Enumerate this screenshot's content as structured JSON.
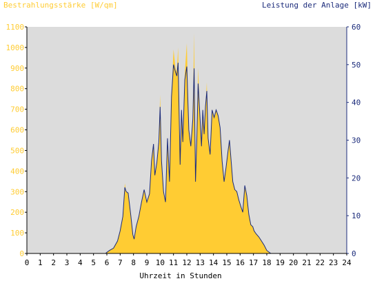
{
  "chart_data": {
    "type": "area",
    "left_axis_title": "Bestrahlungsstärke [W/qm]",
    "right_axis_title": "Leistung der Anlage [kW]",
    "xlabel": "Uhrzeit in Stunden",
    "x_ticks": [
      "0",
      "1",
      "2",
      "3",
      "4",
      "5",
      "6",
      "7",
      "8",
      "9",
      "10",
      "11",
      "12",
      "13",
      "14",
      "15",
      "16",
      "17",
      "18",
      "19",
      "20",
      "21",
      "22",
      "23",
      "24"
    ],
    "y_left_ticks": [
      "0",
      "100",
      "200",
      "300",
      "400",
      "500",
      "600",
      "700",
      "800",
      "900",
      "1000",
      "1100"
    ],
    "y_right_ticks": [
      "0",
      "10",
      "20",
      "30",
      "40",
      "50",
      "60"
    ],
    "xlim": [
      0,
      24
    ],
    "ylim_left": [
      0,
      1100
    ],
    "ylim_right": [
      0,
      60
    ],
    "grid": false,
    "colors": {
      "plot_background": "#dcdcdc",
      "irradiance_fill": "#ffcc33",
      "irradiance_text": "#ffcc33",
      "power_line": "#1a2a7a",
      "power_text": "#1a2a7a",
      "axis_text": "#000000"
    },
    "series": [
      {
        "name": "Bestrahlungsstärke [W/qm]",
        "axis": "left",
        "x": [
          0,
          5.9,
          6.0,
          6.2,
          6.5,
          6.8,
          7.0,
          7.2,
          7.35,
          7.45,
          7.6,
          7.8,
          7.95,
          8.05,
          8.2,
          8.4,
          8.6,
          8.8,
          9.0,
          9.2,
          9.35,
          9.5,
          9.6,
          9.75,
          9.9,
          10.0,
          10.1,
          10.25,
          10.4,
          10.55,
          10.7,
          10.85,
          11.0,
          11.15,
          11.25,
          11.35,
          11.5,
          11.6,
          11.7,
          11.85,
          12.0,
          12.15,
          12.3,
          12.45,
          12.55,
          12.65,
          12.75,
          12.85,
          13.0,
          13.1,
          13.2,
          13.3,
          13.4,
          13.5,
          13.6,
          13.75,
          13.9,
          14.05,
          14.2,
          14.35,
          14.5,
          14.65,
          14.8,
          14.95,
          15.1,
          15.2,
          15.3,
          15.45,
          15.6,
          15.75,
          15.9,
          16.05,
          16.2,
          16.35,
          16.5,
          16.65,
          16.8,
          16.95,
          17.05,
          17.2,
          17.4,
          17.6,
          17.8,
          18.0,
          18.3,
          18.6,
          18.9,
          19.1,
          19.3,
          19.5,
          19.7,
          20.0,
          24.0
        ],
        "values": [
          0,
          0,
          5,
          15,
          25,
          60,
          110,
          180,
          340,
          300,
          290,
          180,
          90,
          70,
          130,
          180,
          250,
          310,
          250,
          290,
          450,
          530,
          380,
          440,
          540,
          770,
          450,
          300,
          250,
          560,
          350,
          760,
          990,
          900,
          880,
          1000,
          430,
          700,
          540,
          880,
          1020,
          600,
          520,
          650,
          1070,
          350,
          550,
          900,
          650,
          520,
          700,
          580,
          720,
          830,
          560,
          480,
          700,
          660,
          700,
          670,
          610,
          450,
          350,
          420,
          500,
          550,
          470,
          350,
          310,
          300,
          260,
          230,
          200,
          330,
          280,
          190,
          140,
          130,
          110,
          95,
          80,
          60,
          40,
          15,
          0,
          0,
          0,
          0,
          0,
          0,
          0,
          0,
          0
        ]
      },
      {
        "name": "Leistung der Anlage [kW]",
        "axis": "right",
        "x": [
          0,
          5.9,
          6.0,
          6.2,
          6.5,
          6.8,
          7.0,
          7.2,
          7.35,
          7.45,
          7.6,
          7.8,
          7.95,
          8.05,
          8.2,
          8.4,
          8.6,
          8.8,
          9.0,
          9.2,
          9.35,
          9.5,
          9.6,
          9.75,
          9.9,
          10.0,
          10.1,
          10.25,
          10.4,
          10.55,
          10.7,
          10.85,
          11.0,
          11.15,
          11.25,
          11.35,
          11.5,
          11.6,
          11.7,
          11.85,
          12.0,
          12.15,
          12.3,
          12.45,
          12.55,
          12.65,
          12.75,
          12.85,
          13.0,
          13.1,
          13.2,
          13.3,
          13.4,
          13.5,
          13.6,
          13.75,
          13.9,
          14.05,
          14.2,
          14.35,
          14.5,
          14.65,
          14.8,
          14.95,
          15.1,
          15.2,
          15.3,
          15.45,
          15.6,
          15.75,
          15.9,
          16.05,
          16.2,
          16.35,
          16.5,
          16.65,
          16.8,
          16.95,
          17.05,
          17.2,
          17.4,
          17.6,
          17.8,
          18.0,
          18.3,
          18.6,
          18.9,
          19.1,
          19.3,
          19.5,
          19.7,
          20.0,
          24.0
        ],
        "values": [
          0,
          0,
          0.3,
          0.8,
          1.4,
          3.3,
          6,
          9.8,
          17.5,
          16.4,
          16,
          10,
          5,
          3.8,
          7.1,
          9.8,
          13.6,
          16.9,
          13.6,
          15.8,
          24.5,
          29,
          20.7,
          24,
          29.5,
          38.8,
          24.5,
          16.4,
          13.6,
          30.5,
          19,
          41.5,
          50,
          48,
          47,
          50.5,
          23.5,
          38,
          29.5,
          46,
          49.5,
          32.7,
          28.4,
          35.5,
          49,
          19,
          30,
          45,
          35.5,
          28.4,
          38,
          31.6,
          39,
          43,
          30.5,
          26.2,
          38,
          36,
          38,
          36.5,
          33.3,
          24.5,
          19,
          22.9,
          27.3,
          30,
          25.6,
          19,
          16.9,
          16.4,
          14.2,
          12.5,
          10.9,
          18,
          15.3,
          10.4,
          7.6,
          7.1,
          6,
          5.2,
          4.4,
          3.3,
          2.2,
          0.8,
          0,
          0,
          0,
          0,
          0,
          0,
          0,
          0,
          0
        ]
      }
    ]
  }
}
